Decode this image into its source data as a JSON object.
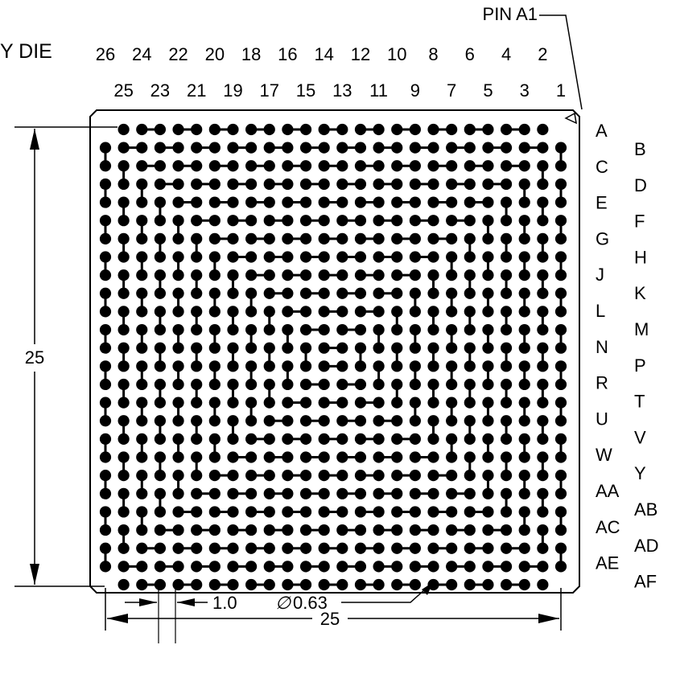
{
  "labels": {
    "pin_a1": "PIN A1",
    "die_fragment": "Y DIE",
    "height_dim": "25",
    "width_dim": "25",
    "pitch_dim": "1.0",
    "ball_dia": "0.63",
    "diameter_symbol": "∅"
  },
  "columns_even": [
    "26",
    "24",
    "22",
    "20",
    "18",
    "16",
    "14",
    "12",
    "10",
    "8",
    "6",
    "4",
    "2"
  ],
  "columns_odd": [
    "25",
    "23",
    "21",
    "19",
    "17",
    "15",
    "13",
    "11",
    "9",
    "7",
    "5",
    "3",
    "1"
  ],
  "rows_left": [
    "A",
    "C",
    "E",
    "G",
    "J",
    "L",
    "N",
    "R",
    "U",
    "W",
    "AA",
    "AC",
    "AE"
  ],
  "rows_right": [
    "B",
    "D",
    "F",
    "H",
    "K",
    "M",
    "P",
    "T",
    "V",
    "Y",
    "AB",
    "AD",
    "AF"
  ],
  "grid": {
    "columns": 26,
    "rows": 26,
    "pitch_mm": 1.0,
    "ball_diameter_mm": 0.63
  }
}
